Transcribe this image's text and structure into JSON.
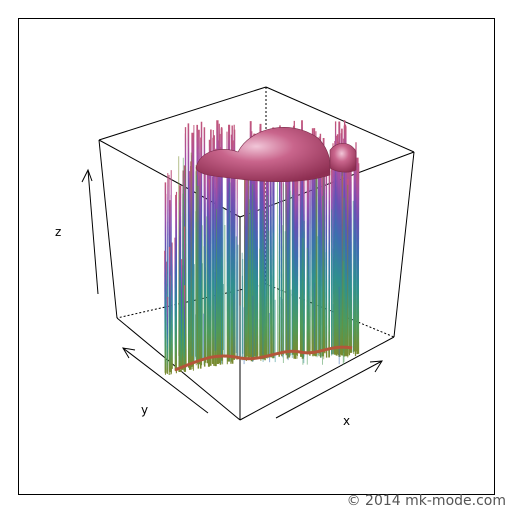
{
  "chart_data": {
    "type": "surface",
    "title": "",
    "xlabel": "x",
    "ylabel": "y",
    "zlabel": "z",
    "axis_ticks": false,
    "grid": false,
    "surface": "3D surface plot with dense vertical spikes, coloured by height from olive/green at the bottom through teal and blue to magenta/rose at the top",
    "colormap": [
      "#7a8a2e",
      "#4f9a5a",
      "#2f8f8f",
      "#3d6db0",
      "#6a4fb3",
      "#a34ea6",
      "#c2567a",
      "#b24a5a"
    ]
  },
  "watermark": "© 2014 mk-mode.com"
}
